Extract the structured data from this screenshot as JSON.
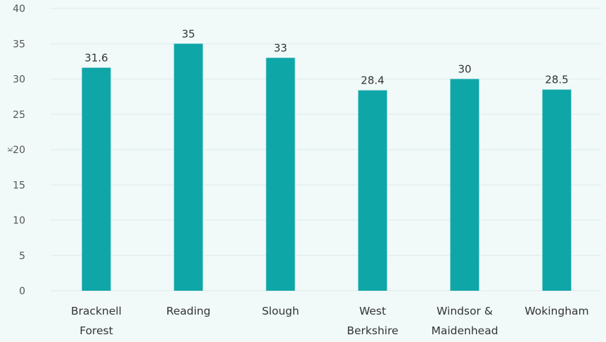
{
  "chart_data": {
    "type": "bar",
    "title": "",
    "xlabel": "",
    "ylabel": "K",
    "ylim": [
      0,
      40
    ],
    "yticks": [
      0,
      5,
      10,
      15,
      20,
      25,
      30,
      35,
      40
    ],
    "grid": true,
    "legend": "none",
    "categories": [
      [
        "Bracknell",
        "Forest"
      ],
      [
        "Reading"
      ],
      [
        "Slough"
      ],
      [
        "West",
        "Berkshire"
      ],
      [
        "Windsor &",
        "Maidenhead"
      ],
      [
        "Wokingham"
      ]
    ],
    "values": [
      31.6,
      35,
      33,
      28.4,
      30,
      28.5
    ],
    "colors": {
      "bar": "#0fa6a8",
      "background": "#f1f9f9",
      "grid": "#dcebeb"
    }
  }
}
